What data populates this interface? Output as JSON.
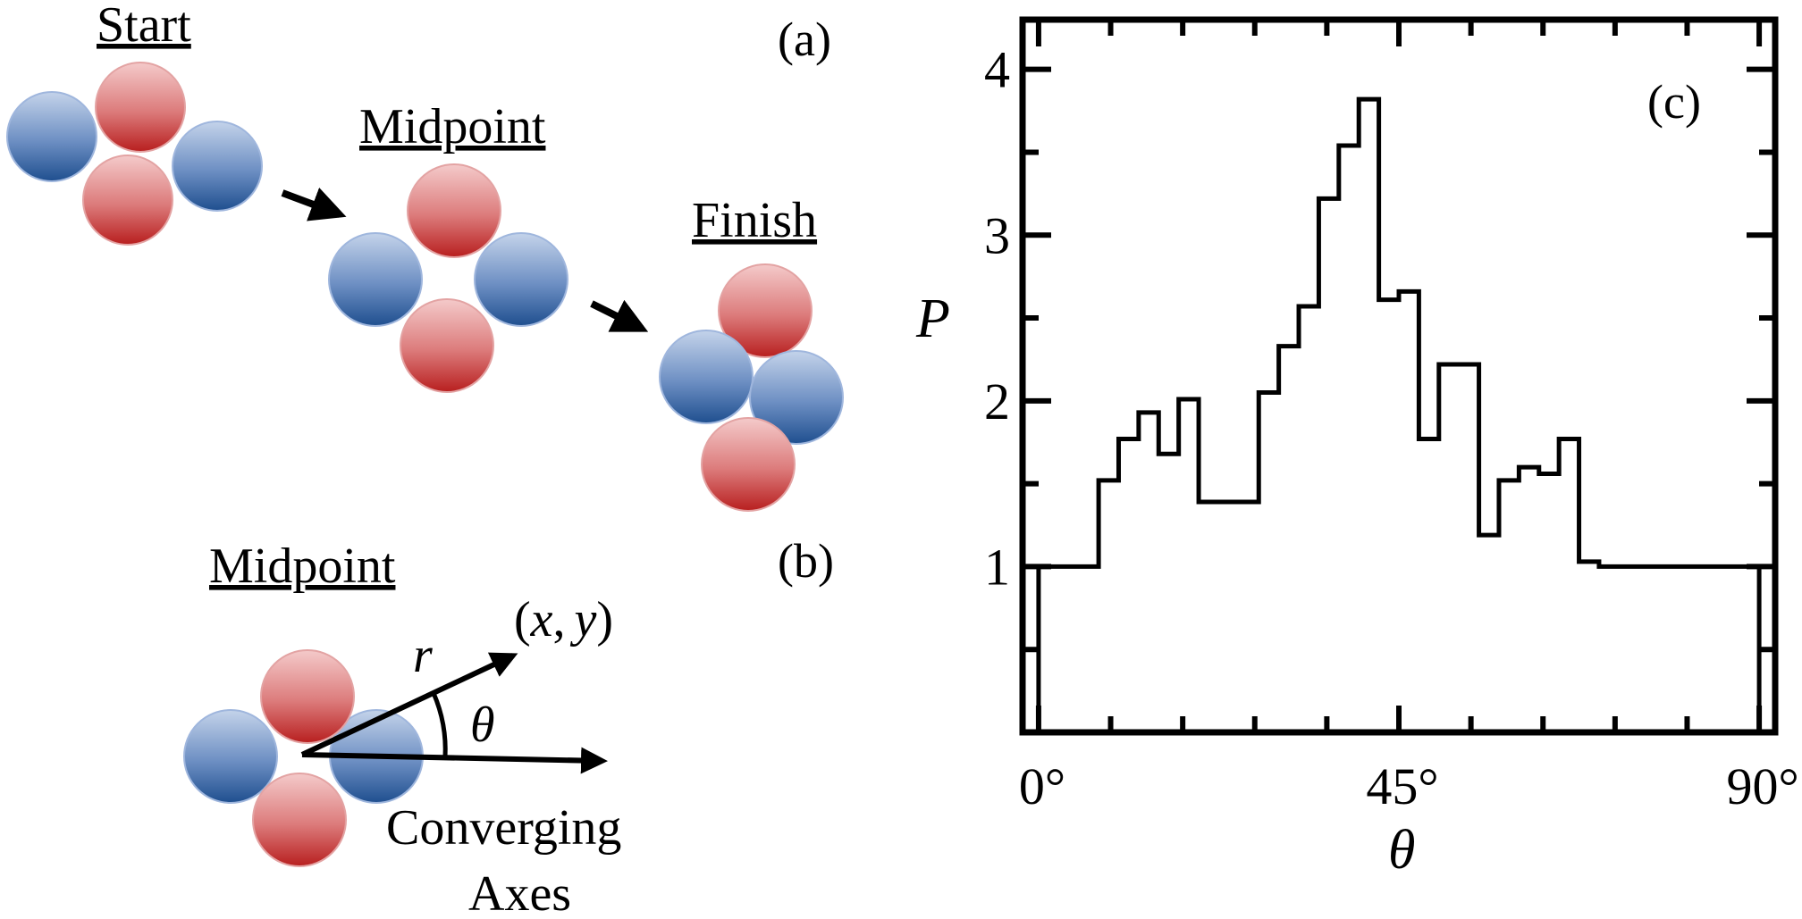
{
  "panel_a": {
    "label": "(a)",
    "stages": [
      "Start",
      "Midpoint",
      "Finish"
    ]
  },
  "panel_b": {
    "label": "(b)",
    "title": "Midpoint",
    "r_label": "r",
    "theta_label": "θ",
    "point_label_open": "(",
    "point_x": "x",
    "point_sep": ",",
    "point_y": "y",
    "point_label_close": ")",
    "caption_line1": "Converging",
    "caption_line2": "Axes"
  },
  "colors": {
    "blue_particle": "#2f5f9e",
    "red_particle": "#c0302c",
    "line": "#000000"
  },
  "chart_data": {
    "type": "histogram",
    "panel_label": "(c)",
    "xlabel": "θ",
    "ylabel": "P",
    "xlim": [
      -2,
      92
    ],
    "ylim": [
      0,
      4.3
    ],
    "x_tick_labels": [
      {
        "value": 0,
        "label": "0°"
      },
      {
        "value": 45,
        "label": "45°"
      },
      {
        "value": 90,
        "label": "90°"
      }
    ],
    "y_tick_labels": [
      {
        "value": 1,
        "label": "1"
      },
      {
        "value": 2,
        "label": "2"
      },
      {
        "value": 3,
        "label": "3"
      },
      {
        "value": 4,
        "label": "4"
      }
    ],
    "y_minor_ticks": [
      0.5,
      1.5,
      2.5,
      3.5
    ],
    "x_minor_ticks": [
      9,
      18,
      27,
      36,
      54,
      63,
      72,
      81
    ],
    "bin_edges": [
      0,
      7.5,
      10,
      12.5,
      15,
      17.5,
      20,
      27.5,
      30,
      32.5,
      35,
      37.5,
      40,
      42.5,
      45,
      47.5,
      50,
      55,
      57.5,
      60,
      62.5,
      65,
      67.5,
      70,
      72.5,
      75,
      77.5,
      80,
      82.5,
      85,
      87.5,
      90
    ],
    "values": [
      1.0,
      1.52,
      1.77,
      1.93,
      1.68,
      2.01,
      1.39,
      2.05,
      2.33,
      2.57,
      3.22,
      3.54,
      3.82,
      2.61,
      2.66,
      1.77,
      2.22,
      1.19,
      1.52,
      1.6,
      1.56,
      1.77,
      1.03,
      1.0,
      1.0,
      1.0,
      1.0,
      1.0,
      1.0,
      1.0,
      1.0
    ]
  }
}
